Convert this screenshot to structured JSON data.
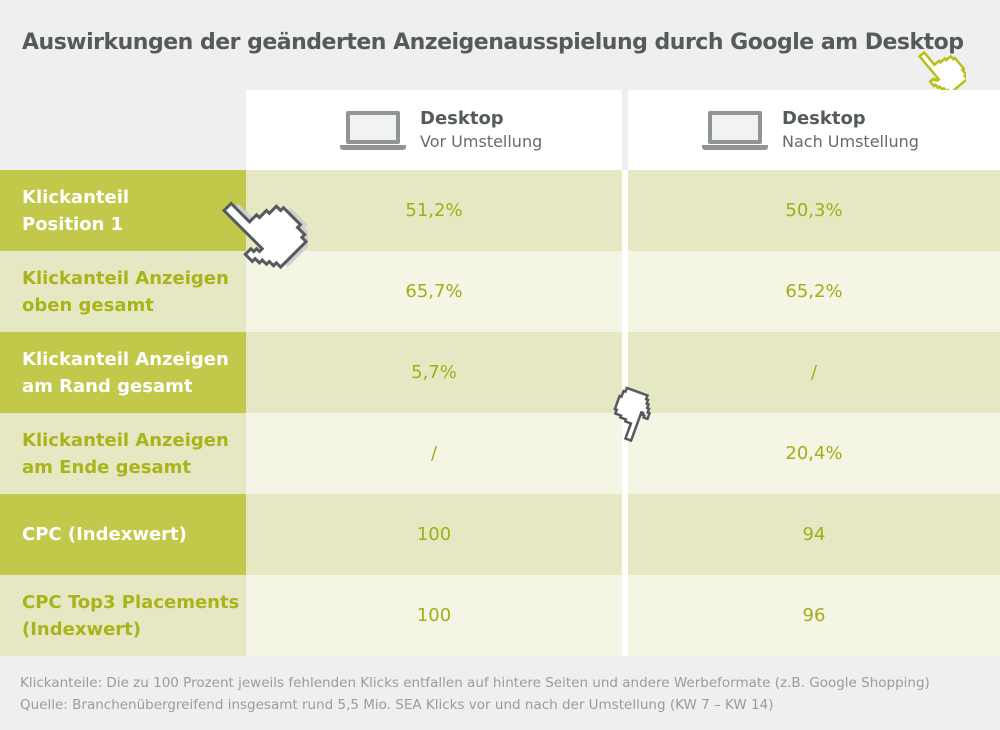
{
  "chart_data": {
    "type": "table",
    "title": "Auswirkungen der geänderten Anzeigenausspielung durch Google am Desktop",
    "columns": [
      {
        "device": "Desktop",
        "phase": "Vor Umstellung"
      },
      {
        "device": "Desktop",
        "phase": "Nach Umstellung"
      }
    ],
    "rows": [
      {
        "label_lines": [
          "Klickanteil",
          "Position 1"
        ],
        "values": [
          "51,2%",
          "50,3%"
        ]
      },
      {
        "label_lines": [
          "Klickanteil Anzeigen",
          "oben gesamt"
        ],
        "values": [
          "65,7%",
          "65,2%"
        ]
      },
      {
        "label_lines": [
          "Klickanteil Anzeigen",
          "am Rand gesamt"
        ],
        "values": [
          "5,7%",
          "/"
        ]
      },
      {
        "label_lines": [
          "Klickanteil Anzeigen",
          "am Ende gesamt"
        ],
        "values": [
          "/",
          "20,4%"
        ]
      },
      {
        "label_lines": [
          "CPC (Indexwert)"
        ],
        "values": [
          "100",
          "94"
        ]
      },
      {
        "label_lines": [
          "CPC Top3 Placements",
          "(Indexwert)"
        ],
        "values": [
          "100",
          "96"
        ]
      }
    ],
    "footnotes": [
      "Klickanteile: Die zu 100 Prozent jeweils fehlenden Klicks entfallen auf hintere Seiten und andere Werbeformate (z.B. Google Shopping)",
      "Quelle: Branchenübergreifend insgesamt rund 5,5 Mio. SEA Klicks vor und nach der Umstellung (KW 7 – KW 14)"
    ]
  },
  "colors": {
    "accent_dark": "#c2c84a",
    "accent_light": "#e5e8c2",
    "value_text": "#a4ad15",
    "title_text": "#555a5c"
  },
  "icons": [
    "laptop-icon",
    "hand-cursor-icon"
  ]
}
